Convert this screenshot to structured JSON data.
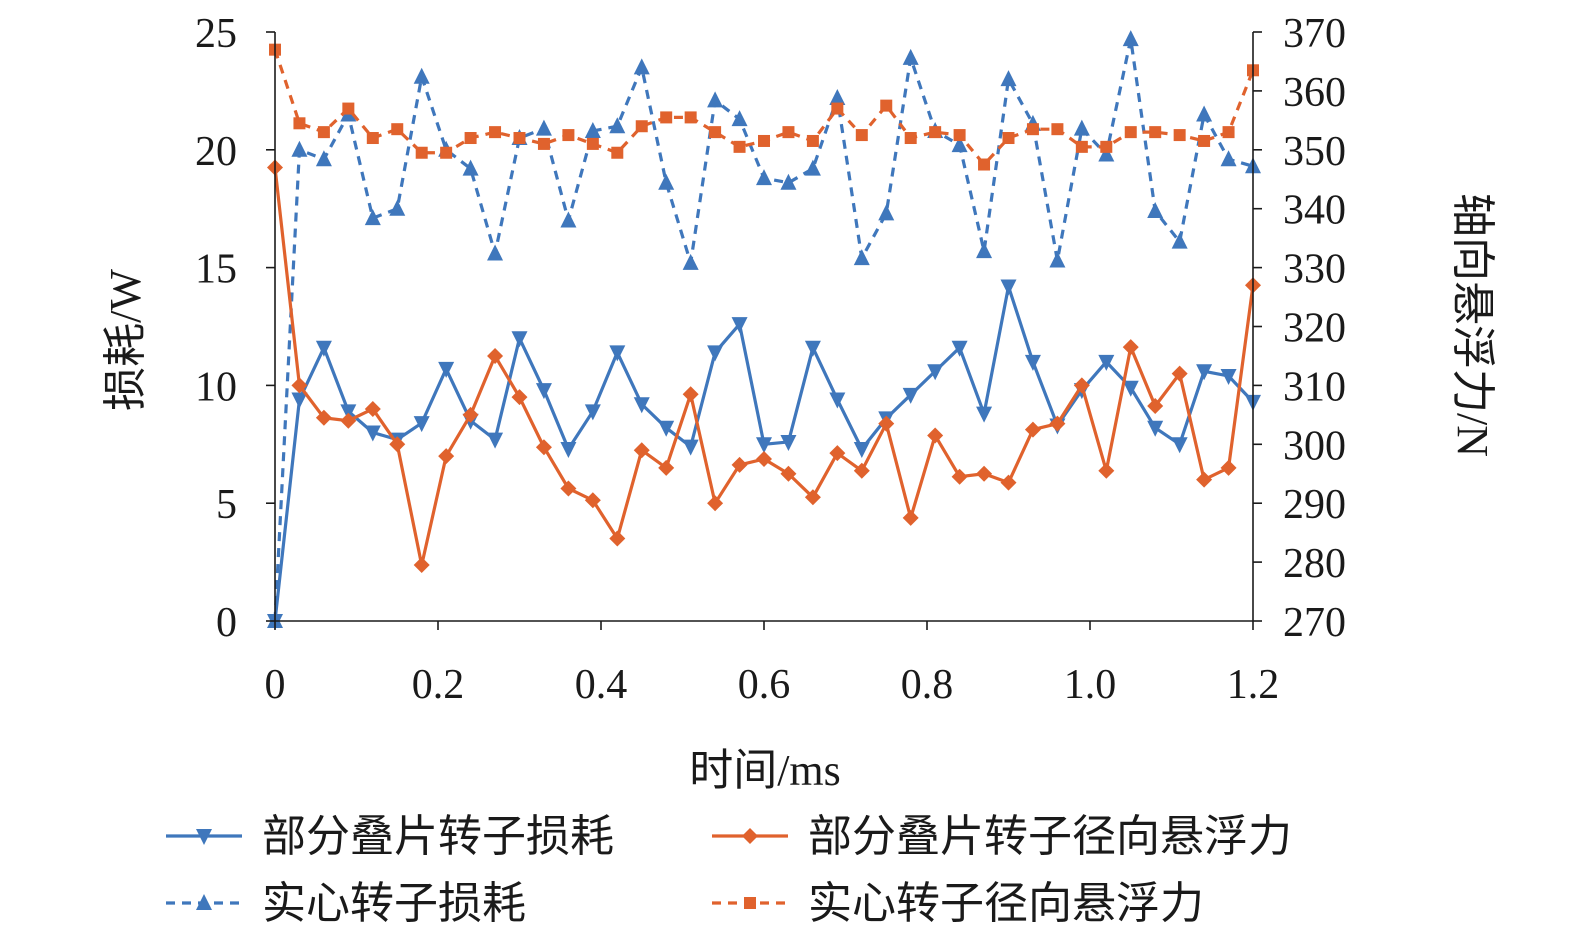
{
  "chart_data": {
    "type": "line",
    "xlabel": "时间/ms",
    "ylabel_left": "损耗/W",
    "ylabel_right": "轴向悬浮力/N",
    "xlim": [
      0,
      1.2
    ],
    "ylim_left": [
      0,
      25
    ],
    "ylim_right": [
      270,
      370
    ],
    "x_ticks": [
      0,
      0.2,
      0.4,
      0.6,
      0.8,
      1.0,
      1.2
    ],
    "x_tick_labels": [
      "0",
      "0.2",
      "0.4",
      "0.6",
      "0.8",
      "1.0",
      "1.2"
    ],
    "y_left_ticks": [
      0,
      5,
      10,
      15,
      20,
      25
    ],
    "y_left_tick_labels": [
      "0",
      "5",
      "10",
      "15",
      "20",
      "25"
    ],
    "y_right_ticks": [
      270,
      280,
      290,
      300,
      310,
      320,
      330,
      340,
      350,
      360,
      370
    ],
    "y_right_tick_labels": [
      "270",
      "280",
      "290",
      "300",
      "310",
      "320",
      "330",
      "340",
      "350",
      "360",
      "370"
    ],
    "grid": false,
    "legend_position": "bottom",
    "x": [
      0,
      0.03,
      0.06,
      0.09,
      0.12,
      0.15,
      0.18,
      0.21,
      0.24,
      0.27,
      0.3,
      0.33,
      0.36,
      0.39,
      0.42,
      0.45,
      0.48,
      0.51,
      0.54,
      0.57,
      0.6,
      0.63,
      0.66,
      0.69,
      0.72,
      0.75,
      0.78,
      0.81,
      0.84,
      0.87,
      0.9,
      0.93,
      0.96,
      0.99,
      1.02,
      1.05,
      1.08,
      1.11,
      1.14,
      1.17,
      1.2
    ],
    "series": [
      {
        "name": "部分叠片转子损耗",
        "axis": "left",
        "color": "#3F77BC",
        "dash": "solid",
        "marker": "triangle-down",
        "values": [
          0,
          9.4,
          11.6,
          8.9,
          8.0,
          7.7,
          8.4,
          10.7,
          8.5,
          7.7,
          12.0,
          9.8,
          7.3,
          8.9,
          11.4,
          9.2,
          8.2,
          7.4,
          11.4,
          12.6,
          7.5,
          7.6,
          11.6,
          9.4,
          7.3,
          8.6,
          9.6,
          10.6,
          11.6,
          8.8,
          14.2,
          11.0,
          8.3,
          9.8,
          11.0,
          9.9,
          8.2,
          7.5,
          10.6,
          10.4,
          9.3
        ]
      },
      {
        "name": "部分叠片转子径向悬浮力",
        "axis": "right",
        "color": "#E0622D",
        "dash": "solid",
        "marker": "diamond",
        "values": [
          347,
          310,
          304.5,
          304,
          306,
          300,
          279.5,
          298,
          305,
          315,
          308,
          299.5,
          292.5,
          290.5,
          284,
          299,
          296,
          308.5,
          290,
          296.5,
          297.5,
          295,
          291,
          298.5,
          295.5,
          303.5,
          287.5,
          301.5,
          294.5,
          295,
          293.5,
          302.5,
          303.5,
          310,
          295.5,
          316.5,
          306.5,
          312,
          294,
          296,
          327
        ]
      },
      {
        "name": "实心转子损耗",
        "axis": "left",
        "color": "#3F77BC",
        "dash": "dashed",
        "marker": "triangle-up",
        "values": [
          0,
          20.0,
          19.6,
          21.5,
          17.1,
          17.5,
          23.1,
          20.0,
          19.2,
          15.6,
          20.5,
          20.9,
          17.0,
          20.8,
          21.0,
          23.5,
          18.6,
          15.2,
          22.1,
          21.3,
          18.8,
          18.6,
          19.2,
          22.2,
          15.4,
          17.3,
          23.9,
          20.8,
          20.2,
          15.7,
          23.0,
          21.1,
          15.3,
          20.9,
          19.8,
          24.7,
          17.4,
          16.1,
          21.5,
          19.6,
          19.3
        ]
      },
      {
        "name": "实心转子径向悬浮力",
        "axis": "right",
        "color": "#E0622D",
        "dash": "dashed",
        "marker": "square",
        "values": [
          367,
          354.5,
          353,
          357,
          352,
          353.5,
          349.5,
          349.5,
          352,
          353,
          352,
          351,
          352.5,
          351,
          349.5,
          354,
          355.5,
          355.5,
          353,
          350.5,
          351.5,
          353,
          351.5,
          357,
          352.5,
          357.5,
          352,
          353,
          352.5,
          347.5,
          352,
          353.5,
          353.5,
          350.5,
          350.5,
          353,
          353,
          352.5,
          351.5,
          353,
          363.5
        ]
      }
    ]
  }
}
